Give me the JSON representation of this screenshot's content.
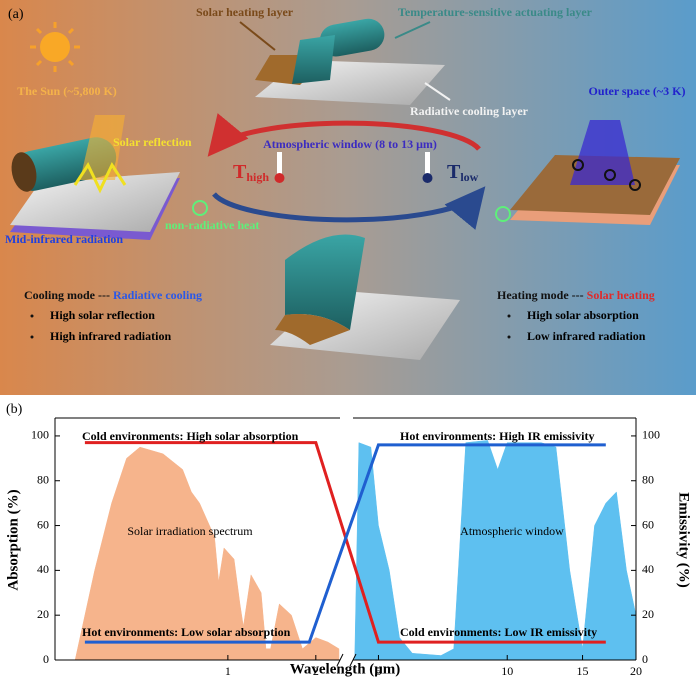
{
  "panel_a": {
    "label": "(a)",
    "solar_heating_layer": "Solar heating layer",
    "actuating_layer": "Temperature-sensitive actuating layer",
    "sun": "The Sun (~5,800 K)",
    "outer_space": "Outer space (~3 K)",
    "radiative_cooling_layer": "Radiative cooling layer",
    "solar_reflection": "Solar reflection",
    "atmospheric_window": "Atmospheric window (8 to 13 μm)",
    "t_high": {
      "symbol": "T",
      "subscript": "high"
    },
    "t_low": {
      "symbol": "T",
      "subscript": "low"
    },
    "mid_infrared": "Mid-infrared radiation",
    "non_radiative": "non-radiative heat",
    "cooling": {
      "mode": "Cooling mode --- ",
      "name": "Radiative cooling",
      "items": [
        "High solar reflection",
        "High infrared radiation"
      ]
    },
    "heating": {
      "mode": "Heating mode --- ",
      "name": "Solar heating",
      "items": [
        "High solar absorption",
        "Low infrared radiation"
      ]
    }
  },
  "chart_data": {
    "type": "line",
    "label": "(b)",
    "x_label": "Wavelength (μm)",
    "y_label": "Absorption (%)",
    "y2_label": "Emissivity (%)",
    "xscale": "log",
    "xlim": [
      0.256,
      20
    ],
    "x_break": [
      2.42,
      4.36
    ],
    "xticks": [
      1,
      2,
      5,
      10,
      15,
      20
    ],
    "ylim": [
      0,
      108
    ],
    "yticks": [
      0,
      20,
      40,
      60,
      80,
      100
    ],
    "y2lim": [
      0,
      108
    ],
    "y2ticks": [
      0,
      20,
      40,
      60,
      80,
      100
    ],
    "areas": [
      {
        "name": "Solar irradiation spectrum",
        "color": "#f6b48c",
        "x": [
          0.3,
          0.35,
          0.4,
          0.45,
          0.5,
          0.6,
          0.7,
          0.75,
          0.8,
          0.9,
          0.93,
          0.97,
          1.05,
          1.1,
          1.13,
          1.2,
          1.3,
          1.35,
          1.4,
          1.5,
          1.65,
          1.8,
          2.0,
          2.2,
          2.4
        ],
        "values": [
          0,
          40,
          70,
          90,
          95,
          92,
          85,
          75,
          70,
          55,
          35,
          50,
          45,
          25,
          15,
          38,
          30,
          5,
          5,
          25,
          20,
          5,
          10,
          8,
          5
        ]
      },
      {
        "name": "Atmospheric window",
        "color": "#5ec0f0",
        "x": [
          4.4,
          4.5,
          4.8,
          5.0,
          5.3,
          5.6,
          6,
          7,
          7.5,
          8,
          9,
          9.5,
          10,
          12,
          13,
          14,
          15,
          16,
          17,
          18,
          19,
          20
        ],
        "values": [
          0,
          97,
          95,
          60,
          40,
          10,
          3,
          2,
          5,
          97,
          98,
          85,
          97,
          97,
          95,
          40,
          5,
          60,
          70,
          75,
          40,
          20
        ]
      }
    ],
    "series": [
      {
        "color": "#e02020",
        "x": [
          0.324,
          2,
          5,
          17
        ],
        "values": [
          97,
          97,
          8,
          8
        ]
      },
      {
        "color": "#1f5fd0",
        "axis": "y2",
        "x": [
          0.324,
          1.9,
          5,
          17
        ],
        "values": [
          8,
          8,
          96,
          96
        ]
      }
    ],
    "annotations": [
      "Cold environments: High solar absorption",
      "Hot environments: High IR emissivity",
      "Hot environments: Low solar absorption",
      "Cold environments: Low IR emissivity"
    ]
  }
}
